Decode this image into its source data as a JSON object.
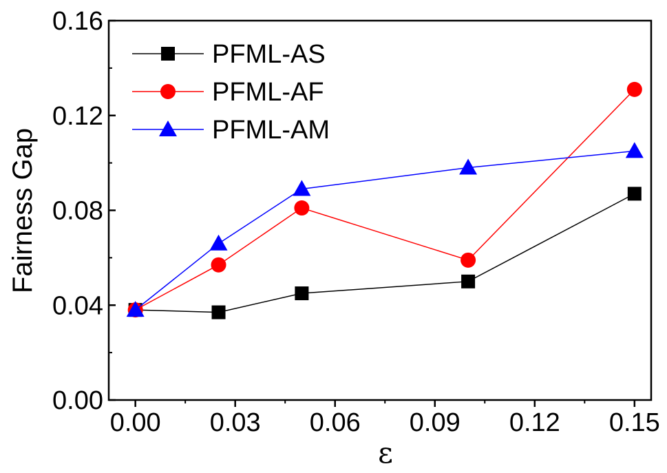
{
  "chart_data": {
    "type": "line",
    "xlabel": "ε",
    "ylabel": "Fairness Gap",
    "xlim": [
      -0.008,
      0.155
    ],
    "ylim": [
      0,
      0.16
    ],
    "x_ticks": [
      "0.00",
      "0.03",
      "0.06",
      "0.09",
      "0.12",
      "0.15"
    ],
    "y_ticks": [
      "0.00",
      "0.04",
      "0.08",
      "0.12",
      "0.16"
    ],
    "x": [
      0,
      0.025,
      0.05,
      0.1,
      0.15
    ],
    "grid": false,
    "legend_position": "top-left",
    "series": [
      {
        "name": "PFML-AS",
        "color": "#000000",
        "marker": "square",
        "values": [
          0.038,
          0.037,
          0.045,
          0.05,
          0.087
        ]
      },
      {
        "name": "PFML-AF",
        "color": "#ff0000",
        "marker": "circle",
        "values": [
          0.038,
          0.057,
          0.081,
          0.059,
          0.131
        ]
      },
      {
        "name": "PFML-AM",
        "color": "#0000ff",
        "marker": "triangle",
        "values": [
          0.038,
          0.066,
          0.089,
          0.098,
          0.105
        ]
      }
    ]
  }
}
